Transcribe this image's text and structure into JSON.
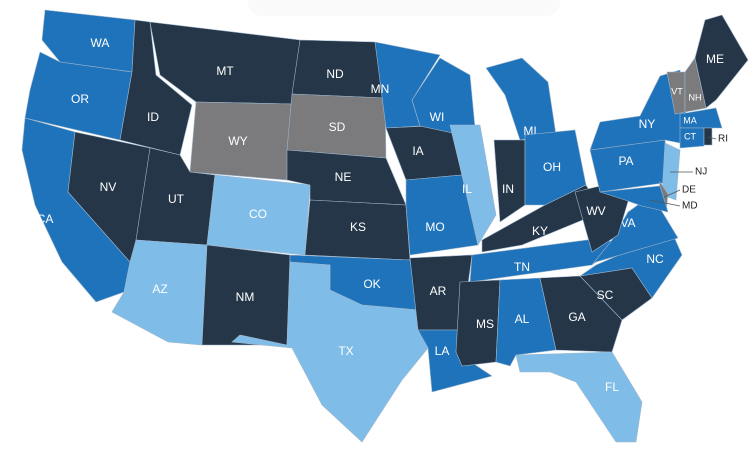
{
  "legend_colors": {
    "dark": "#243648",
    "blue": "#1f73ba",
    "light": "#7fbde8",
    "gray": "#7b7b7d"
  },
  "states": [
    {
      "abbr": "WA",
      "category": "blue"
    },
    {
      "abbr": "OR",
      "category": "blue"
    },
    {
      "abbr": "CA",
      "category": "blue"
    },
    {
      "abbr": "NV",
      "category": "dark"
    },
    {
      "abbr": "ID",
      "category": "dark"
    },
    {
      "abbr": "MT",
      "category": "dark"
    },
    {
      "abbr": "WY",
      "category": "gray"
    },
    {
      "abbr": "UT",
      "category": "dark"
    },
    {
      "abbr": "AZ",
      "category": "light"
    },
    {
      "abbr": "CO",
      "category": "light"
    },
    {
      "abbr": "NM",
      "category": "dark"
    },
    {
      "abbr": "ND",
      "category": "dark"
    },
    {
      "abbr": "SD",
      "category": "gray"
    },
    {
      "abbr": "NE",
      "category": "dark"
    },
    {
      "abbr": "KS",
      "category": "dark"
    },
    {
      "abbr": "OK",
      "category": "blue"
    },
    {
      "abbr": "TX",
      "category": "light"
    },
    {
      "abbr": "MN",
      "category": "blue"
    },
    {
      "abbr": "IA",
      "category": "dark"
    },
    {
      "abbr": "MO",
      "category": "blue"
    },
    {
      "abbr": "AR",
      "category": "dark"
    },
    {
      "abbr": "LA",
      "category": "blue"
    },
    {
      "abbr": "WI",
      "category": "blue"
    },
    {
      "abbr": "IL",
      "category": "light"
    },
    {
      "abbr": "MI",
      "category": "blue"
    },
    {
      "abbr": "IN",
      "category": "dark"
    },
    {
      "abbr": "OH",
      "category": "blue"
    },
    {
      "abbr": "KY",
      "category": "dark"
    },
    {
      "abbr": "TN",
      "category": "blue"
    },
    {
      "abbr": "MS",
      "category": "dark"
    },
    {
      "abbr": "AL",
      "category": "blue"
    },
    {
      "abbr": "GA",
      "category": "dark"
    },
    {
      "abbr": "FL",
      "category": "light"
    },
    {
      "abbr": "SC",
      "category": "dark"
    },
    {
      "abbr": "NC",
      "category": "blue"
    },
    {
      "abbr": "VA",
      "category": "blue"
    },
    {
      "abbr": "WV",
      "category": "dark"
    },
    {
      "abbr": "PA",
      "category": "blue"
    },
    {
      "abbr": "NY",
      "category": "blue"
    },
    {
      "abbr": "NJ",
      "category": "light"
    },
    {
      "abbr": "DE",
      "category": "gray"
    },
    {
      "abbr": "MD",
      "category": "blue"
    },
    {
      "abbr": "MA",
      "category": "blue"
    },
    {
      "abbr": "CT",
      "category": "blue"
    },
    {
      "abbr": "RI",
      "category": "dark"
    },
    {
      "abbr": "VT",
      "category": "gray"
    },
    {
      "abbr": "NH",
      "category": "gray"
    },
    {
      "abbr": "ME",
      "category": "dark"
    }
  ]
}
